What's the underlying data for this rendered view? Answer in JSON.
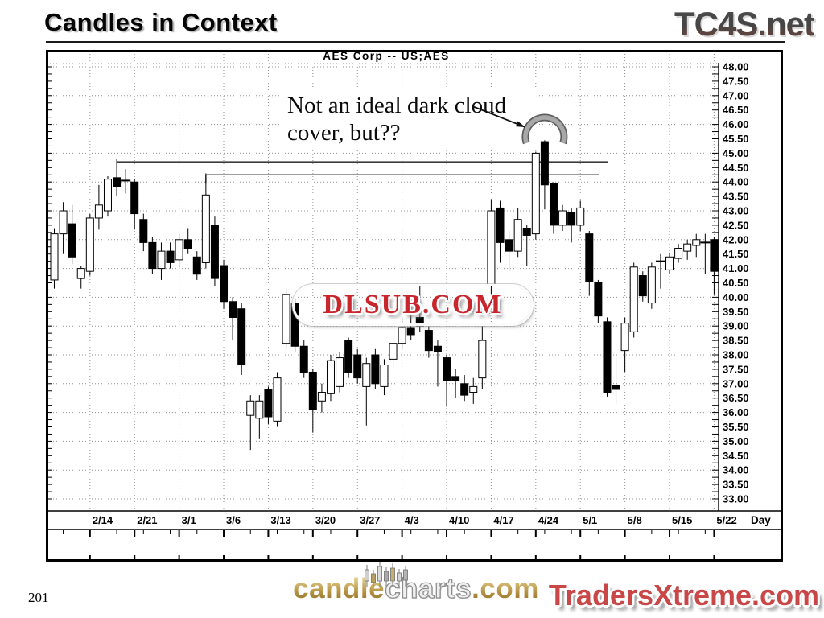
{
  "page": {
    "title": "Candles in Context",
    "page_number": "201"
  },
  "logos": {
    "top_right": "TC4S.net",
    "bottom_left": {
      "part1": "candle",
      "part2": "charts",
      "part3": ".com"
    },
    "bottom_right": "TradersXtreme.com"
  },
  "watermark": "DLSUB.COM",
  "colors": {
    "watermark_red": "#c6262c",
    "logo_red": "#c94747",
    "gold": "#b08d3e",
    "arc_gray": "#a8a8a8",
    "grid_gray": "#8c8c8c"
  },
  "chart_data": {
    "type": "candlestick",
    "title": "AES Corp -- US;AES",
    "annotation": {
      "lines": [
        "Not an ideal dark cloud",
        "cover, but??"
      ]
    },
    "highlight_candle_index": 55,
    "x_labels": [
      "2/14",
      "2/21",
      "3/1",
      "3/6",
      "3/13",
      "3/20",
      "3/27",
      "4/3",
      "4/10",
      "4/17",
      "4/24",
      "5/1",
      "5/8",
      "5/15",
      "5/22"
    ],
    "x_axis_end_label": "Day",
    "x_label_first_candle": 4,
    "x_label_candle_step": 5,
    "ylim": [
      33,
      48
    ],
    "y_step": 0.5,
    "y_tick_labels": [
      "48.00",
      "47.50",
      "47.00",
      "46.50",
      "46.00",
      "45.50",
      "45.00",
      "44.50",
      "44.00",
      "43.50",
      "43.00",
      "42.50",
      "42.00",
      "41.50",
      "41.00",
      "40.50",
      "40.00",
      "39.50",
      "39.00",
      "38.50",
      "38.00",
      "37.50",
      "37.00",
      "36.50",
      "36.00",
      "35.50",
      "35.00",
      "34.50",
      "34.00",
      "33.50",
      "33.00"
    ],
    "resistance_lines": [
      {
        "price": 44.7,
        "from_candle": 7
      },
      {
        "price": 44.25,
        "from_candle": 17
      }
    ],
    "candles_format": [
      "open",
      "high",
      "low",
      "close"
    ],
    "candles": [
      [
        40.6,
        42.4,
        40.3,
        42.2
      ],
      [
        42.2,
        43.3,
        41.5,
        43.0
      ],
      [
        42.55,
        43.2,
        41.15,
        41.4
      ],
      [
        40.65,
        41.1,
        40.3,
        41.0
      ],
      [
        40.9,
        42.9,
        40.75,
        42.75
      ],
      [
        42.75,
        43.9,
        42.35,
        43.2
      ],
      [
        43.0,
        44.2,
        42.8,
        44.1
      ],
      [
        44.15,
        44.8,
        43.5,
        43.85
      ],
      [
        44.05,
        44.45,
        43.6,
        44.05
      ],
      [
        44.0,
        44.1,
        42.35,
        42.9
      ],
      [
        42.7,
        42.9,
        41.6,
        41.9
      ],
      [
        41.9,
        42.1,
        40.8,
        41.0
      ],
      [
        41.0,
        41.9,
        40.6,
        41.6
      ],
      [
        41.6,
        41.9,
        41.0,
        41.2
      ],
      [
        41.3,
        42.2,
        41.0,
        42.0
      ],
      [
        42.0,
        42.4,
        41.5,
        41.7
      ],
      [
        41.4,
        41.6,
        40.6,
        40.8
      ],
      [
        41.2,
        44.3,
        41.0,
        43.55
      ],
      [
        42.5,
        42.8,
        40.4,
        40.65
      ],
      [
        41.1,
        41.3,
        39.6,
        39.85
      ],
      [
        39.85,
        40.0,
        38.5,
        39.3
      ],
      [
        39.6,
        39.8,
        37.3,
        37.65
      ],
      [
        35.9,
        36.6,
        34.7,
        36.4
      ],
      [
        35.8,
        36.6,
        35.1,
        36.4
      ],
      [
        36.8,
        36.9,
        35.6,
        35.85
      ],
      [
        35.7,
        37.4,
        35.5,
        37.2
      ],
      [
        38.4,
        40.3,
        38.2,
        40.1
      ],
      [
        39.8,
        40.0,
        38.1,
        38.3
      ],
      [
        38.3,
        38.5,
        37.2,
        37.4
      ],
      [
        37.4,
        37.5,
        35.3,
        36.1
      ],
      [
        36.4,
        37.0,
        36.0,
        36.7
      ],
      [
        36.65,
        38.0,
        36.4,
        37.8
      ],
      [
        36.9,
        38.1,
        36.7,
        37.9
      ],
      [
        38.5,
        38.6,
        37.2,
        37.4
      ],
      [
        38.0,
        38.2,
        37.0,
        37.2
      ],
      [
        36.9,
        37.9,
        35.55,
        37.7
      ],
      [
        38.0,
        38.2,
        36.8,
        37.0
      ],
      [
        36.9,
        37.85,
        36.6,
        37.65
      ],
      [
        37.85,
        38.6,
        37.6,
        38.4
      ],
      [
        38.4,
        39.3,
        38.2,
        38.95
      ],
      [
        38.95,
        39.4,
        38.5,
        38.7
      ],
      [
        39.3,
        40.45,
        38.8,
        39.0
      ],
      [
        38.85,
        39.0,
        37.9,
        38.15
      ],
      [
        38.3,
        38.5,
        36.9,
        38.1
      ],
      [
        37.9,
        38.0,
        36.2,
        37.1
      ],
      [
        37.25,
        37.5,
        36.5,
        37.1
      ],
      [
        37.0,
        37.3,
        36.4,
        36.6
      ],
      [
        36.7,
        37.2,
        36.3,
        36.9
      ],
      [
        37.2,
        39.1,
        36.8,
        38.5
      ],
      [
        40.4,
        43.4,
        40.0,
        43.0
      ],
      [
        43.1,
        43.35,
        41.2,
        41.9
      ],
      [
        42.0,
        42.3,
        40.9,
        41.6
      ],
      [
        41.6,
        43.1,
        41.4,
        42.7
      ],
      [
        42.4,
        42.5,
        41.1,
        42.15
      ],
      [
        42.2,
        45.05,
        42.0,
        45.0
      ],
      [
        45.4,
        45.45,
        43.05,
        43.9
      ],
      [
        43.95,
        44.0,
        42.2,
        42.5
      ],
      [
        42.5,
        43.2,
        42.3,
        43.0
      ],
      [
        42.95,
        43.1,
        41.9,
        42.5
      ],
      [
        42.5,
        43.35,
        42.3,
        43.1
      ],
      [
        42.2,
        42.3,
        40.05,
        40.55
      ],
      [
        40.5,
        40.6,
        39.1,
        39.35
      ],
      [
        39.15,
        39.3,
        36.55,
        36.7
      ],
      [
        36.95,
        37.9,
        36.3,
        36.8
      ],
      [
        38.15,
        39.3,
        37.4,
        39.1
      ],
      [
        38.8,
        41.2,
        38.6,
        41.05
      ],
      [
        40.75,
        40.9,
        39.85,
        40.05
      ],
      [
        39.8,
        41.2,
        39.6,
        41.05
      ],
      [
        41.25,
        41.5,
        40.3,
        41.25
      ],
      [
        40.95,
        41.55,
        40.8,
        41.4
      ],
      [
        41.35,
        41.85,
        41.2,
        41.7
      ],
      [
        41.6,
        42.0,
        41.3,
        41.85
      ],
      [
        41.8,
        42.2,
        41.4,
        42.0
      ],
      [
        41.9,
        42.2,
        40.8,
        41.9
      ],
      [
        42.0,
        42.1,
        40.1,
        40.9
      ]
    ]
  }
}
